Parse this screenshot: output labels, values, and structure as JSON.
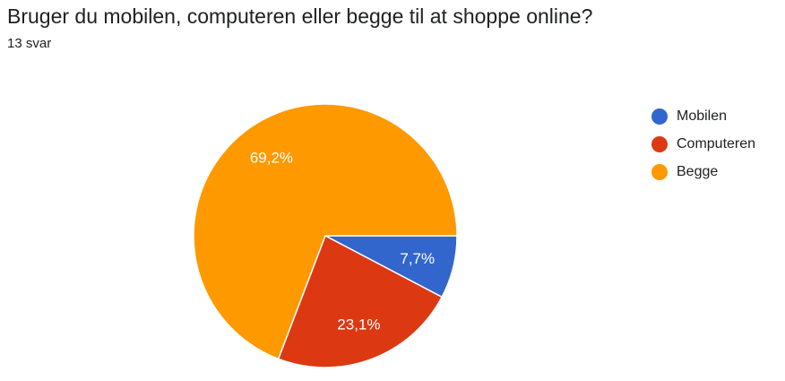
{
  "header": {
    "title": "Bruger du mobilen, computeren eller begge til at shoppe online?",
    "response_count": "13 svar"
  },
  "chart_data": {
    "type": "pie",
    "categories": [
      "Mobilen",
      "Computeren",
      "Begge"
    ],
    "values": [
      7.7,
      23.1,
      69.2
    ],
    "labels": [
      "7,7%",
      "23,1%",
      "69,2%"
    ],
    "colors": [
      "#3366cc",
      "#dc3912",
      "#ff9900"
    ],
    "legend_position": "right"
  }
}
